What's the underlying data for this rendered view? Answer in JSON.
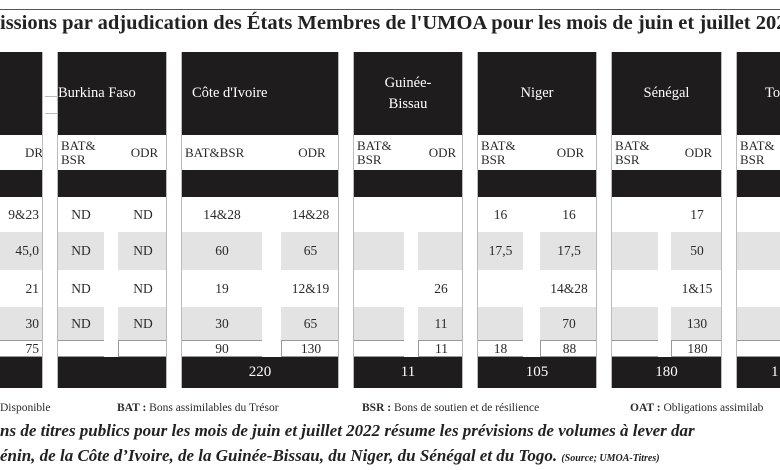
{
  "title": "issions par adjudication des États Membres de l'UMOA pour les mois de juin et juillet 202",
  "panels": [
    {
      "country": "",
      "col1": "",
      "col2": "DR",
      "rows": [
        [
          "",
          "9&23"
        ],
        [
          "",
          "45,0"
        ],
        [
          "",
          "21"
        ],
        [
          "",
          "30"
        ],
        [
          "",
          "75"
        ]
      ],
      "total": ""
    },
    {
      "country": "Burkina Faso",
      "col1": "BAT& BSR",
      "col2": "ODR",
      "rows": [
        [
          "ND",
          "ND"
        ],
        [
          "ND",
          "ND"
        ],
        [
          "ND",
          "ND"
        ],
        [
          "ND",
          "ND"
        ],
        [
          "",
          ""
        ]
      ],
      "total": ""
    },
    {
      "country": "Côte d'Ivoire",
      "col1": "BAT&BSR",
      "col2": "ODR",
      "rows": [
        [
          "14&28",
          "14&28"
        ],
        [
          "60",
          "65"
        ],
        [
          "19",
          "12&19"
        ],
        [
          "30",
          "65"
        ],
        [
          "90",
          "130"
        ]
      ],
      "total": "220"
    },
    {
      "country": "Guinée- Bissau",
      "col1": "BAT& BSR",
      "col2": "ODR",
      "rows": [
        [
          "",
          ""
        ],
        [
          "",
          ""
        ],
        [
          "",
          "26"
        ],
        [
          "",
          "11"
        ],
        [
          "",
          "11"
        ]
      ],
      "total": "11"
    },
    {
      "country": "Niger",
      "col1": "BAT& BSR",
      "col2": "ODR",
      "rows": [
        [
          "16",
          "16"
        ],
        [
          "17,5",
          "17,5"
        ],
        [
          "",
          "14&28"
        ],
        [
          "",
          "70"
        ],
        [
          "18",
          "88"
        ]
      ],
      "total": "105"
    },
    {
      "country": "Sénégal",
      "col1": "BAT& BSR",
      "col2": "ODR",
      "rows": [
        [
          "",
          "17"
        ],
        [
          "",
          "50"
        ],
        [
          "",
          "1&15"
        ],
        [
          "",
          "130"
        ],
        [
          "",
          "180"
        ]
      ],
      "total": "180"
    },
    {
      "country": "Tog",
      "col1": "BAT& BSR",
      "col2": "",
      "rows": [
        [
          "",
          ""
        ],
        [
          "",
          ""
        ],
        [
          "",
          ""
        ],
        [
          "",
          ""
        ],
        [
          "",
          ""
        ]
      ],
      "total": "1"
    }
  ],
  "legend": [
    {
      "abbr": "",
      "text": "Disponible"
    },
    {
      "abbr": "BAT :",
      "text": " Bons assimilables du Trésor"
    },
    {
      "abbr": "BSR :",
      "text": " Bons de soutien et de résilience"
    },
    {
      "abbr": "OAT :",
      "text": " Obligations assimilab"
    }
  ],
  "note": {
    "line1": "ns de titres publics pour les mois de juin et juillet 2022 résume les prévisions de volumes à lever dar",
    "line2": "énin, de la Côte d’Ivoire, de la Guinée-Bissau, du Niger, du Sénégal et du Togo.",
    "source": "(Source; UMOA-Titres)"
  }
}
